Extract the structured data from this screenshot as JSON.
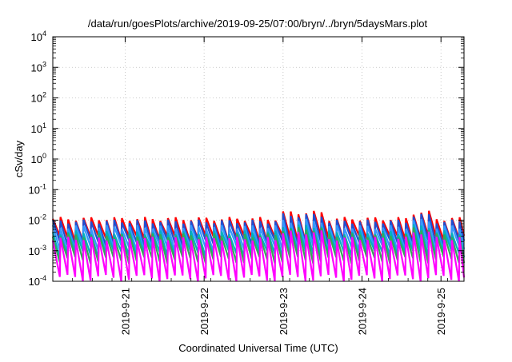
{
  "chart_data": {
    "type": "line",
    "title": "/data/run/goesPlots/archive/2019-09-25/07:00/bryn/../bryn/5daysMars.plot",
    "xlabel": "Coordinated Universal Time (UTC)",
    "ylabel": "cSv/day",
    "y_scale": "log",
    "ylim": [
      0.0001,
      10000
    ],
    "y_ticks": [
      {
        "value": 0.0001,
        "base": "10",
        "exp": "-4"
      },
      {
        "value": 0.001,
        "base": "10",
        "exp": "-3"
      },
      {
        "value": 0.01,
        "base": "10",
        "exp": "-2"
      },
      {
        "value": 0.1,
        "base": "10",
        "exp": "-1"
      },
      {
        "value": 1,
        "base": "10",
        "exp": "0"
      },
      {
        "value": 10,
        "base": "10",
        "exp": "1"
      },
      {
        "value": 100,
        "base": "10",
        "exp": "2"
      },
      {
        "value": 1000,
        "base": "10",
        "exp": "3"
      },
      {
        "value": 10000,
        "base": "10",
        "exp": "4"
      }
    ],
    "x_type": "date",
    "xlim": [
      "2019-09-20T02:00",
      "2019-09-25T07:00"
    ],
    "x_ticks": [
      {
        "value": "2019-09-21T00:00",
        "label": "2019-9-21"
      },
      {
        "value": "2019-09-22T00:00",
        "label": "2019-9-22"
      },
      {
        "value": "2019-09-23T00:00",
        "label": "2019-9-23"
      },
      {
        "value": "2019-09-24T00:00",
        "label": "2019-9-24"
      },
      {
        "value": "2019-09-25T00:00",
        "label": "2019-9-25"
      }
    ],
    "grid": true,
    "legend": "none",
    "series_note_pattern": "periodic sawtooth, period ~2.3 h (Mars orbit)",
    "series": [
      {
        "color": "#ff0000",
        "x": [
          "2019-09-20T02:00",
          "2019-09-20T04:20",
          "2019-09-20T06:40",
          "2019-09-20T09:00",
          "2019-09-20T11:20",
          "2019-09-20T13:40",
          "2019-09-20T16:00",
          "2019-09-20T18:20",
          "2019-09-20T20:40",
          "2019-09-20T23:00",
          "2019-09-21T01:20",
          "2019-09-21T03:40",
          "2019-09-21T06:00",
          "2019-09-21T08:20",
          "2019-09-21T10:40",
          "2019-09-21T13:00",
          "2019-09-21T15:20",
          "2019-09-21T17:40",
          "2019-09-21T20:00",
          "2019-09-21T22:20",
          "2019-09-22T00:40",
          "2019-09-22T03:00",
          "2019-09-22T05:20",
          "2019-09-22T07:40",
          "2019-09-22T10:00",
          "2019-09-22T12:20",
          "2019-09-22T14:40",
          "2019-09-22T17:00",
          "2019-09-22T19:20",
          "2019-09-22T21:40",
          "2019-09-23T00:00",
          "2019-09-23T02:20",
          "2019-09-23T04:40",
          "2019-09-23T07:00",
          "2019-09-23T09:20",
          "2019-09-23T11:40",
          "2019-09-23T14:00",
          "2019-09-23T16:20",
          "2019-09-23T18:40",
          "2019-09-23T21:00",
          "2019-09-23T23:20",
          "2019-09-24T01:40",
          "2019-09-24T04:00",
          "2019-09-24T06:20",
          "2019-09-24T08:40",
          "2019-09-24T11:00",
          "2019-09-24T13:20",
          "2019-09-24T15:40",
          "2019-09-24T18:00",
          "2019-09-24T20:20",
          "2019-09-24T22:40",
          "2019-09-25T01:00",
          "2019-09-25T03:20",
          "2019-09-25T05:40"
        ],
        "y_peak": 0.011,
        "y_trough": 0.0025,
        "y_peaks_high": [
          0.014,
          0.017,
          0.02,
          0.018,
          0.015
        ]
      },
      {
        "color": "#1f4fd0",
        "y_peak": 0.009,
        "y_trough": 0.0018
      },
      {
        "color": "#3399ff",
        "y_peak": 0.006,
        "y_trough": 0.0012
      },
      {
        "color": "#00b0c0",
        "y_peak": 0.004,
        "y_trough": 0.0008
      },
      {
        "color": "#33aa55",
        "y_peak": 0.0032,
        "y_trough": 0.0005
      },
      {
        "color": "#ff00ff",
        "y_peak": 0.0025,
        "y_trough": 0.00013
      }
    ]
  }
}
